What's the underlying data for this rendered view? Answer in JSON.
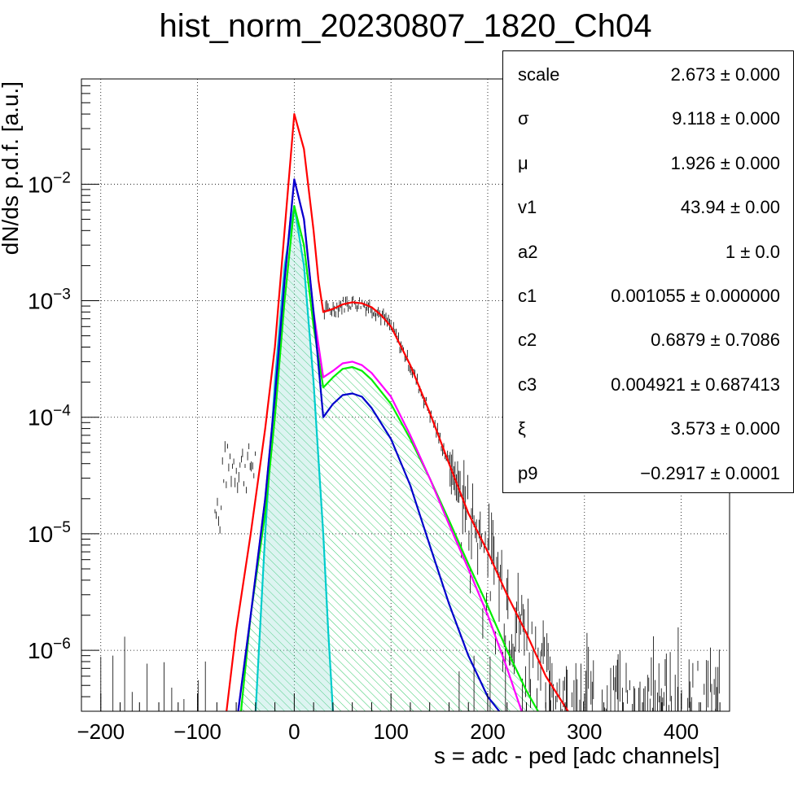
{
  "title": "hist_norm_20230807_1820_Ch04",
  "chart_data": {
    "type": "line",
    "title": "hist_norm_20230807_1820_Ch04",
    "xlabel": "s = adc - ped [adc channels]",
    "ylabel": "dN/ds p.d.f. [a.u.]",
    "xlim": [
      -220,
      450
    ],
    "ylim": [
      3e-07,
      0.08
    ],
    "yscale": "log",
    "grid": true,
    "x_ticks": [
      -200,
      -100,
      0,
      100,
      200,
      300,
      400
    ],
    "x_tick_labels": [
      "−200",
      "−100",
      "0",
      "100",
      "200",
      "300",
      "400"
    ],
    "y_ticks": [
      1e-06,
      1e-05,
      0.0001,
      0.001,
      0.01
    ],
    "y_tick_labels": [
      {
        "base": "10",
        "exp": "−6"
      },
      {
        "base": "10",
        "exp": "−5"
      },
      {
        "base": "10",
        "exp": "−4"
      },
      {
        "base": "10",
        "exp": "−3"
      },
      {
        "base": "10",
        "exp": "−2"
      }
    ],
    "series": [
      {
        "color": "#ff0000",
        "x": [
          -70,
          -60,
          -45,
          -30,
          -20,
          -10,
          0,
          10,
          20,
          25,
          30,
          40,
          50,
          60,
          70,
          80,
          90,
          100,
          120,
          140,
          160,
          180,
          200,
          220,
          240,
          260,
          283
        ],
        "y": [
          3e-07,
          1.5e-06,
          1e-05,
          8e-05,
          0.0004,
          0.004,
          0.04,
          0.02,
          0.004,
          0.0015,
          0.0008,
          0.00085,
          0.00093,
          0.00097,
          0.00095,
          0.00088,
          0.00075,
          0.0006,
          0.00028,
          0.00011,
          4e-05,
          1.5e-05,
          7e-06,
          3e-06,
          1.4e-06,
          6e-07,
          3e-07
        ]
      },
      {
        "color": "#ff00ff",
        "x": [
          -58,
          -45,
          -30,
          -20,
          -10,
          0,
          10,
          20,
          30,
          40,
          50,
          60,
          70,
          80,
          100,
          120,
          140,
          160,
          180,
          200,
          220,
          235
        ],
        "y": [
          3e-07,
          2e-06,
          2e-05,
          0.00015,
          0.0015,
          0.011,
          0.005,
          0.0008,
          0.00022,
          0.00025,
          0.00029,
          0.0003,
          0.00028,
          0.00024,
          0.00015,
          7e-05,
          3e-05,
          1.2e-05,
          5e-06,
          2e-06,
          7e-07,
          3e-07
        ]
      },
      {
        "color": "#0000cc",
        "x": [
          -58,
          -45,
          -30,
          -20,
          -10,
          0,
          10,
          20,
          30,
          40,
          50,
          60,
          70,
          80,
          100,
          120,
          140,
          160,
          180,
          200,
          212
        ],
        "y": [
          3e-07,
          2e-06,
          2e-05,
          0.00015,
          0.0015,
          0.011,
          0.005,
          0.0008,
          0.0001,
          0.00013,
          0.000155,
          0.00016,
          0.00015,
          0.00012,
          6.5e-05,
          2.6e-05,
          8e-06,
          2.5e-06,
          9e-07,
          4e-07,
          3e-07
        ]
      },
      {
        "color": "#00ee00",
        "x": [
          -55,
          -45,
          -30,
          -20,
          -10,
          0,
          10,
          20,
          30,
          40,
          50,
          60,
          70,
          80,
          100,
          120,
          140,
          160,
          180,
          200,
          220,
          240,
          252
        ],
        "y": [
          3e-07,
          2e-06,
          1.5e-05,
          0.0001,
          0.001,
          0.0065,
          0.003,
          0.0006,
          0.00018,
          0.00022,
          0.00026,
          0.00027,
          0.00025,
          0.00021,
          0.00013,
          6.5e-05,
          3e-05,
          1.3e-05,
          5.5e-06,
          2.4e-06,
          1e-06,
          4.5e-07,
          3e-07
        ]
      },
      {
        "color": "#00cccc",
        "x": [
          -40,
          -30,
          -20,
          -10,
          0,
          10,
          20,
          30,
          35,
          40
        ],
        "y": [
          3e-07,
          1e-05,
          0.0002,
          0.002,
          0.0065,
          0.002,
          0.0002,
          1e-05,
          1.5e-06,
          3e-07
        ]
      }
    ]
  },
  "stats": [
    {
      "name": "scale",
      "value": "2.673 ± 0.000"
    },
    {
      "name": "σ",
      "value": "9.118 ± 0.000"
    },
    {
      "name": "μ",
      "value": "1.926 ± 0.000"
    },
    {
      "name": "v1",
      "value": "43.94 ± 0.00"
    },
    {
      "name": "a2",
      "value": "1 ± 0.0"
    },
    {
      "name": "c1",
      "value": "0.001055 ± 0.000000"
    },
    {
      "name": "c2",
      "value": "0.6879 ± 0.7086"
    },
    {
      "name": "c3",
      "value": "0.004921 ± 0.687413"
    },
    {
      "name": "ξ",
      "value": "3.573 ± 0.000"
    },
    {
      "name": "p9",
      "value": "−0.2917 ± 0.0001"
    }
  ]
}
